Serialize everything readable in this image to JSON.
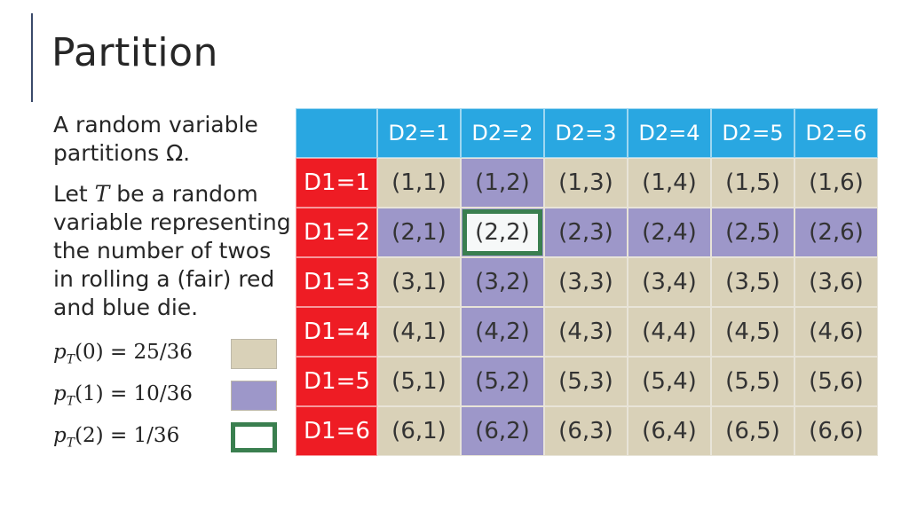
{
  "slide": {
    "title": "Partition",
    "paragraph1": "A random variable partitions Ω.",
    "paragraph2_pre": "Let ",
    "paragraph2_var": "T",
    "paragraph2_post": " be a random variable representing the number of twos in rolling a (fair) red and blue die."
  },
  "legend": [
    {
      "label_pre": "p",
      "label_sub": "T",
      "label_post": "(0) = 25/36",
      "color": "#d9d1b8",
      "style": "filled"
    },
    {
      "label_pre": "p",
      "label_sub": "T",
      "label_post": "(1) = 10/36",
      "color": "#9d97c9",
      "style": "filled"
    },
    {
      "label_pre": "p",
      "label_sub": "T",
      "label_post": "(2) = 1/36",
      "color": "#3a7f4f",
      "style": "outline"
    }
  ],
  "table": {
    "col_headers": [
      "D2=1",
      "D2=2",
      "D2=3",
      "D2=4",
      "D2=5",
      "D2=6"
    ],
    "row_headers": [
      "D1=1",
      "D1=2",
      "D1=3",
      "D1=4",
      "D1=5",
      "D1=6"
    ],
    "cells": [
      [
        "(1,1)",
        "(1,2)",
        "(1,3)",
        "(1,4)",
        "(1,5)",
        "(1,6)"
      ],
      [
        "(2,1)",
        "(2,2)",
        "(2,3)",
        "(2,4)",
        "(2,5)",
        "(2,6)"
      ],
      [
        "(3,1)",
        "(3,2)",
        "(3,3)",
        "(3,4)",
        "(3,5)",
        "(3,6)"
      ],
      [
        "(4,1)",
        "(4,2)",
        "(4,3)",
        "(4,4)",
        "(4,5)",
        "(4,6)"
      ],
      [
        "(5,1)",
        "(5,2)",
        "(5,3)",
        "(5,4)",
        "(5,5)",
        "(5,6)"
      ],
      [
        "(6,1)",
        "(6,2)",
        "(6,3)",
        "(6,4)",
        "(6,5)",
        "(6,6)"
      ]
    ],
    "colors": {
      "header_blue": "#29a7e1",
      "row_red": "#ee1c24",
      "zero_twos": "#d9d1b8",
      "one_two": "#9d97c9",
      "two_twos_border": "#3a7f4f"
    }
  }
}
